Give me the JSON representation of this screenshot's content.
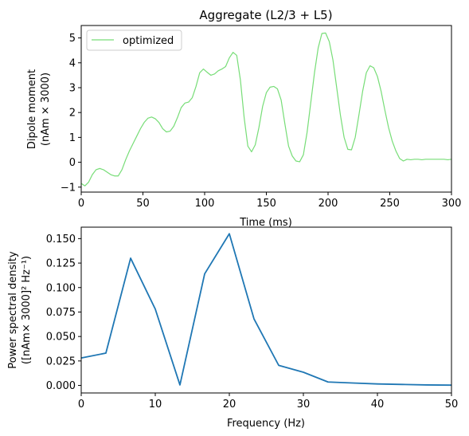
{
  "chart_data": [
    {
      "type": "line",
      "title": "Aggregate (L2/3 + L5)",
      "xlabel": "Time (ms)",
      "ylabel": [
        "Dipole moment",
        "(nAm × 3000)"
      ],
      "xlim": [
        0,
        300
      ],
      "ylim": [
        -1.2,
        5.5
      ],
      "xticks": [
        "0",
        "50",
        "100",
        "150",
        "200",
        "250",
        "300"
      ],
      "yticks": [
        "−1",
        "0",
        "1",
        "2",
        "3",
        "4",
        "5"
      ],
      "grid": false,
      "legend": "top-left",
      "series": [
        {
          "name": "optimized",
          "color": "#77dd77",
          "x": [
            0,
            3,
            6,
            9,
            12,
            15,
            18,
            21,
            24,
            27,
            30,
            33,
            36,
            39,
            42,
            45,
            48,
            51,
            54,
            57,
            60,
            63,
            66,
            69,
            72,
            75,
            78,
            81,
            84,
            87,
            90,
            93,
            96,
            99,
            102,
            105,
            108,
            111,
            114,
            117,
            120,
            123,
            126,
            129,
            132,
            135,
            138,
            141,
            144,
            147,
            150,
            153,
            156,
            159,
            162,
            165,
            168,
            171,
            174,
            177,
            180,
            183,
            186,
            189,
            192,
            195,
            198,
            201,
            204,
            207,
            210,
            213,
            216,
            219,
            222,
            225,
            228,
            231,
            234,
            237,
            240,
            243,
            246,
            249,
            252,
            255,
            258,
            261,
            264,
            267,
            270,
            273,
            276,
            279,
            282,
            285,
            288,
            291,
            294,
            297,
            300
          ],
          "y": [
            -0.85,
            -0.95,
            -0.8,
            -0.5,
            -0.3,
            -0.25,
            -0.3,
            -0.4,
            -0.5,
            -0.55,
            -0.55,
            -0.3,
            0.1,
            0.45,
            0.75,
            1.05,
            1.35,
            1.6,
            1.77,
            1.82,
            1.75,
            1.6,
            1.35,
            1.22,
            1.25,
            1.45,
            1.8,
            2.2,
            2.38,
            2.42,
            2.6,
            3.05,
            3.6,
            3.75,
            3.62,
            3.5,
            3.55,
            3.68,
            3.75,
            3.85,
            4.2,
            4.42,
            4.3,
            3.3,
            1.8,
            0.65,
            0.42,
            0.7,
            1.4,
            2.25,
            2.8,
            3.02,
            3.05,
            2.95,
            2.5,
            1.55,
            0.65,
            0.25,
            0.05,
            0.02,
            0.3,
            1.2,
            2.4,
            3.6,
            4.6,
            5.18,
            5.2,
            4.85,
            4.1,
            3.0,
            1.9,
            1.0,
            0.52,
            0.5,
            1.0,
            1.9,
            2.85,
            3.6,
            3.88,
            3.8,
            3.45,
            2.85,
            2.1,
            1.4,
            0.85,
            0.45,
            0.15,
            0.05,
            0.12,
            0.1,
            0.12,
            0.12,
            0.1,
            0.12,
            0.12,
            0.12,
            0.12,
            0.12,
            0.12,
            0.1,
            0.12
          ]
        }
      ]
    },
    {
      "type": "line",
      "title": "",
      "xlabel": "Frequency (Hz)",
      "ylabel": [
        "Power spectral density",
        "([nAm× 3000]² Hz⁻¹)"
      ],
      "xlim": [
        0,
        50
      ],
      "ylim": [
        -0.0077,
        0.1617
      ],
      "xticks": [
        "0",
        "10",
        "20",
        "30",
        "40",
        "50"
      ],
      "yticks": [
        "0.000",
        "0.025",
        "0.050",
        "0.075",
        "0.100",
        "0.125",
        "0.150"
      ],
      "grid": false,
      "series": [
        {
          "color": "#1f77b4",
          "x": [
            0,
            3.33,
            6.67,
            10,
            13.33,
            16.67,
            20,
            23.33,
            26.67,
            30,
            33.33,
            36.67,
            40,
            43.33,
            46.67,
            50
          ],
          "y": [
            0.028,
            0.033,
            0.13,
            0.078,
            0.0005,
            0.114,
            0.155,
            0.068,
            0.0205,
            0.0135,
            0.0035,
            0.0025,
            0.0015,
            0.001,
            0.0005,
            0.0003
          ]
        }
      ]
    }
  ]
}
